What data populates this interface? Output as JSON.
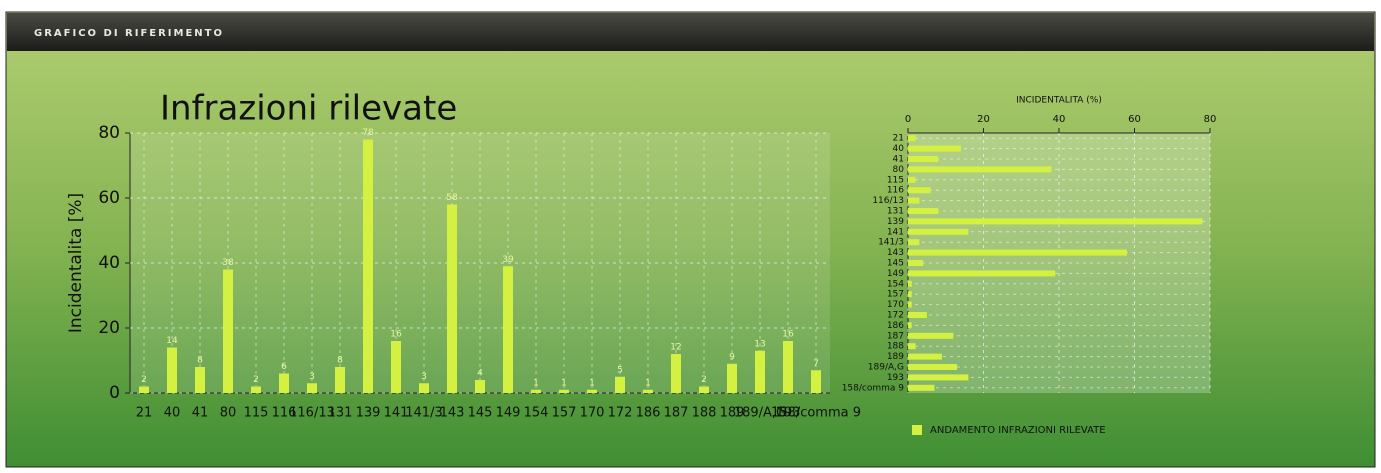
{
  "header": {
    "title": "GRAFICO DI RIFERIMENTO"
  },
  "chart_data": [
    {
      "type": "bar",
      "title": "Infrazioni rilevate",
      "ylabel": "Incidentalita [%]",
      "categories": [
        "21",
        "40",
        "41",
        "80",
        "115",
        "116",
        "116/13",
        "131",
        "139",
        "141",
        "141/3",
        "143",
        "145",
        "149",
        "154",
        "157",
        "170",
        "172",
        "186",
        "187",
        "188",
        "189",
        "189/A,G",
        "193",
        "158/comma 9"
      ],
      "values": [
        2,
        14,
        8,
        38,
        2,
        6,
        3,
        8,
        78,
        16,
        3,
        58,
        4,
        39,
        1,
        1,
        1,
        5,
        1,
        12,
        2,
        9,
        13,
        16,
        7
      ],
      "color": "#d4f040",
      "ylim": [
        0,
        80
      ],
      "yticks": [
        0,
        20,
        40,
        60,
        80
      ],
      "grid": true
    },
    {
      "type": "barh",
      "xlabel": "INCIDENTALITA (%)",
      "categories": [
        "21",
        "40",
        "41",
        "80",
        "115",
        "116",
        "116/13",
        "131",
        "139",
        "141",
        "141/3",
        "143",
        "145",
        "149",
        "154",
        "157",
        "170",
        "172",
        "186",
        "187",
        "188",
        "189",
        "189/A,G",
        "193",
        "158/comma 9"
      ],
      "series": [
        {
          "name": "ANDAMENTO INFRAZIONI RILEVATE",
          "color": "#d4f040",
          "values": [
            2,
            14,
            8,
            38,
            2,
            6,
            3,
            8,
            78,
            16,
            3,
            58,
            4,
            39,
            1,
            1,
            1,
            5,
            1,
            12,
            2,
            9,
            13,
            16,
            7
          ]
        }
      ],
      "xlim": [
        0,
        80
      ],
      "xticks": [
        0,
        20,
        40,
        60,
        80
      ],
      "grid": true,
      "legend": "bottom"
    }
  ]
}
